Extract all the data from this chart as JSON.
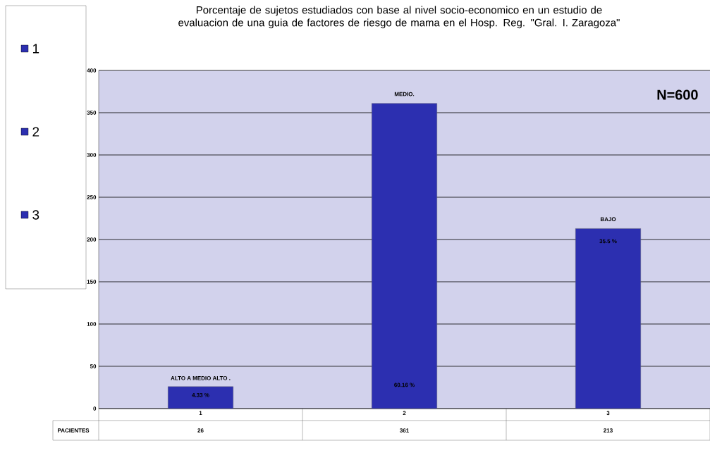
{
  "chart_data": {
    "type": "bar",
    "title": "Porcentaje de sujetos  estudiados con base al nivel socio-economico en un estudio de evaluacion de una  guia de factores de riesgo  de mama en el Hosp. Reg. \"Gral. I. Zaragoza\"",
    "categories": [
      "1",
      "2",
      "3"
    ],
    "series": [
      {
        "name": "PACIENTES",
        "colors": [
          "#2c2fb0",
          "#2c2fb0",
          "#2c2fb0"
        ],
        "values": [
          26,
          361,
          213
        ]
      }
    ],
    "ylim": [
      0,
      400
    ],
    "yticks": [
      0,
      50,
      100,
      150,
      200,
      250,
      300,
      350,
      400
    ],
    "grid": "y",
    "legend": "left",
    "data_labels": true,
    "annotations": [
      "ALTO A MEDIO ALTO .",
      "4.33 %",
      "MEDIO.",
      "60.16 %",
      "BAJO",
      "35.5 %",
      "N=600"
    ]
  }
}
